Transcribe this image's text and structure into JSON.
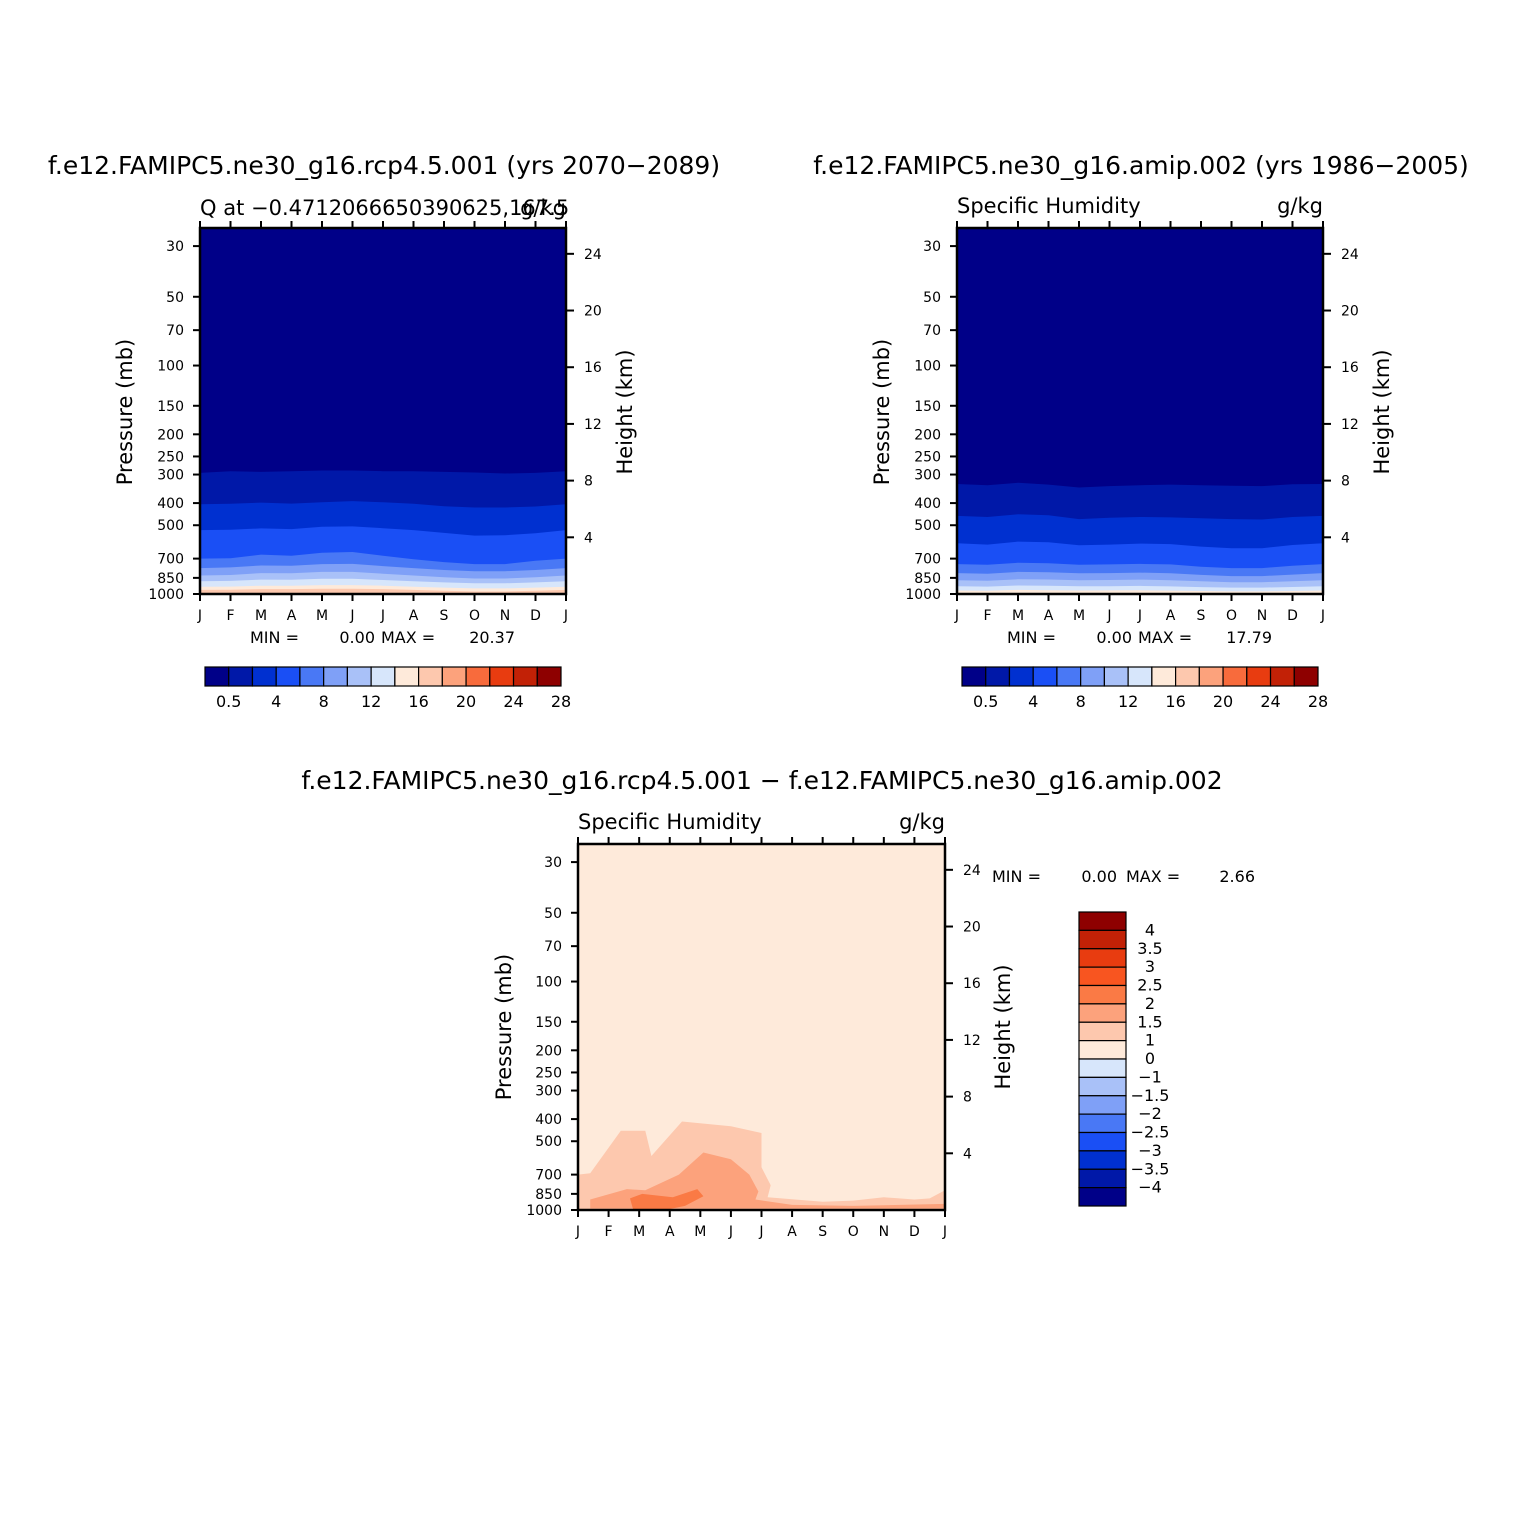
{
  "figure": {
    "panels": [
      {
        "id": "rcp",
        "title": "f.e12.FAMIPC5.ne30_g16.rcp4.5.001 (yrs 2070−2089)",
        "left_label": "Q at −0.4712066650390625,167.5",
        "right_label": "g/kg",
        "stats": {
          "min_label": "MIN =",
          "min": "0.00",
          "max_label": "MAX =",
          "max": "20.37"
        }
      },
      {
        "id": "amip",
        "title": "f.e12.FAMIPC5.ne30_g16.amip.002 (yrs 1986−2005)",
        "left_label": "Specific Humidity",
        "right_label": "g/kg",
        "stats": {
          "min_label": "MIN =",
          "min": "0.00",
          "max_label": "MAX =",
          "max": "17.79"
        }
      },
      {
        "id": "diff",
        "title": "f.e12.FAMIPC5.ne30_g16.rcp4.5.001 − f.e12.FAMIPC5.ne30_g16.amip.002",
        "left_label": "Specific Humidity",
        "right_label": "g/kg",
        "stats": {
          "min_label": "MIN =",
          "min": "0.00",
          "max_label": "MAX =",
          "max": "2.66"
        }
      }
    ],
    "y_axis_label": "Pressure (mb)",
    "y2_axis_label": "Height (km)"
  },
  "chart_data": [
    {
      "type": "heatmap",
      "panel": "rcp",
      "x_categories": [
        "J",
        "F",
        "M",
        "A",
        "M",
        "J",
        "J",
        "A",
        "S",
        "O",
        "N",
        "D",
        "J"
      ],
      "y_ticks_pressure_mb": [
        30,
        50,
        70,
        100,
        150,
        200,
        250,
        300,
        400,
        500,
        700,
        850,
        1000
      ],
      "y2_ticks_height_km": [
        4,
        8,
        12,
        16,
        20,
        24
      ],
      "ylim_mb": [
        1000,
        25
      ],
      "y_scale": "log",
      "color_levels": [
        "0.5",
        "4",
        "8",
        "12",
        "16",
        "20",
        "24",
        "28"
      ],
      "palette": [
        "#000088",
        "#0018a8",
        "#0030d0",
        "#1a4ff5",
        "#4978f5",
        "#7fa0f7",
        "#a9c1f8",
        "#d7e6fb",
        "#feeada",
        "#fdc8ae",
        "#fca27c",
        "#f86b3c",
        "#e83c10",
        "#c22106",
        "#8e0000"
      ],
      "bands_top_mb": [
        {
          "level": 1,
          "values": [
            295,
            290,
            292,
            290,
            288,
            288,
            290,
            290,
            292,
            294,
            297,
            295,
            290
          ]
        },
        {
          "level": 2,
          "values": [
            405,
            403,
            398,
            402,
            397,
            392,
            397,
            403,
            413,
            418,
            418,
            414,
            405
          ]
        },
        {
          "level": 3,
          "values": [
            525,
            523,
            516,
            520,
            508,
            506,
            515,
            525,
            540,
            555,
            553,
            542,
            525
          ]
        },
        {
          "level": 4,
          "values": [
            700,
            698,
            672,
            680,
            660,
            655,
            680,
            705,
            725,
            740,
            740,
            715,
            700
          ]
        },
        {
          "level": 5,
          "values": [
            770,
            765,
            750,
            752,
            740,
            738,
            755,
            770,
            785,
            795,
            795,
            785,
            770
          ]
        },
        {
          "level": 6,
          "values": [
            830,
            826,
            810,
            812,
            800,
            800,
            815,
            830,
            845,
            855,
            855,
            845,
            830
          ]
        },
        {
          "level": 7,
          "values": [
            880,
            876,
            865,
            866,
            858,
            858,
            868,
            880,
            890,
            898,
            898,
            890,
            880
          ]
        },
        {
          "level": 8,
          "values": [
            930,
            928,
            920,
            920,
            914,
            914,
            920,
            930,
            938,
            945,
            945,
            938,
            930
          ]
        },
        {
          "level": 9,
          "values": [
            960,
            958,
            952,
            952,
            948,
            948,
            952,
            960,
            968,
            975,
            975,
            968,
            960
          ]
        }
      ]
    },
    {
      "type": "heatmap",
      "panel": "amip",
      "x_categories": [
        "J",
        "F",
        "M",
        "A",
        "M",
        "J",
        "J",
        "A",
        "S",
        "O",
        "N",
        "D",
        "J"
      ],
      "y_ticks_pressure_mb": [
        30,
        50,
        70,
        100,
        150,
        200,
        250,
        300,
        400,
        500,
        700,
        850,
        1000
      ],
      "y2_ticks_height_km": [
        4,
        8,
        12,
        16,
        20,
        24
      ],
      "ylim_mb": [
        1000,
        25
      ],
      "y_scale": "log",
      "color_levels": [
        "0.5",
        "4",
        "8",
        "12",
        "16",
        "20",
        "24",
        "28"
      ],
      "palette": [
        "#000088",
        "#0018a8",
        "#0030d0",
        "#1a4ff5",
        "#4978f5",
        "#7fa0f7",
        "#a9c1f8",
        "#d7e6fb",
        "#feeada",
        "#fdc8ae",
        "#fca27c",
        "#f86b3c",
        "#e83c10",
        "#c22106",
        "#8e0000"
      ],
      "bands_top_mb": [
        {
          "level": 1,
          "values": [
            330,
            334,
            326,
            332,
            342,
            337,
            334,
            332,
            334,
            336,
            337,
            331,
            330
          ]
        },
        {
          "level": 2,
          "values": [
            455,
            460,
            448,
            452,
            470,
            464,
            460,
            462,
            466,
            470,
            472,
            460,
            455
          ]
        },
        {
          "level": 3,
          "values": [
            600,
            608,
            590,
            594,
            612,
            608,
            602,
            605,
            620,
            630,
            630,
            610,
            600
          ]
        },
        {
          "level": 4,
          "values": [
            740,
            745,
            730,
            733,
            745,
            742,
            738,
            742,
            760,
            770,
            770,
            752,
            740
          ]
        },
        {
          "level": 5,
          "values": [
            810,
            815,
            800,
            803,
            812,
            810,
            806,
            812,
            825,
            835,
            835,
            822,
            810
          ]
        },
        {
          "level": 6,
          "values": [
            870,
            875,
            862,
            864,
            870,
            868,
            865,
            870,
            880,
            888,
            888,
            880,
            870
          ]
        },
        {
          "level": 7,
          "values": [
            925,
            928,
            918,
            920,
            925,
            924,
            922,
            926,
            933,
            938,
            938,
            932,
            925
          ]
        },
        {
          "level": 8,
          "values": [
            965,
            967,
            960,
            962,
            965,
            964,
            963,
            966,
            970,
            974,
            974,
            970,
            965
          ]
        }
      ]
    },
    {
      "type": "heatmap",
      "panel": "diff",
      "x_categories": [
        "J",
        "F",
        "M",
        "A",
        "M",
        "J",
        "J",
        "A",
        "S",
        "O",
        "N",
        "D",
        "J"
      ],
      "y_ticks_pressure_mb": [
        30,
        50,
        70,
        100,
        150,
        200,
        250,
        300,
        400,
        500,
        700,
        850,
        1000
      ],
      "y2_ticks_height_km": [
        4,
        8,
        12,
        16,
        20,
        24
      ],
      "ylim_mb": [
        1000,
        25
      ],
      "y_scale": "log",
      "color_levels": [
        "4",
        "3.5",
        "3",
        "2.5",
        "2",
        "1.5",
        "1",
        "0",
        "−1",
        "−1.5",
        "−2",
        "−2.5",
        "−3",
        "−3.5",
        "−4"
      ],
      "palette": [
        "#8e0000",
        "#c22106",
        "#e83c10",
        "#f85520",
        "#fa7a45",
        "#fca27c",
        "#fdc8ae",
        "#feeada",
        "#d7e6fb",
        "#a9c1f8",
        "#7fa0f7",
        "#4978f5",
        "#1a4ff5",
        "#0030d0",
        "#0018a8",
        "#000088"
      ],
      "base_level": 7,
      "contours": [
        {
          "level": 6,
          "points": [
            [
              0,
              700
            ],
            [
              0.4,
              690
            ],
            [
              1.4,
              450
            ],
            [
              2.2,
              450
            ],
            [
              2.4,
              580
            ],
            [
              3.4,
              410
            ],
            [
              5.0,
              430
            ],
            [
              6.0,
              460
            ],
            [
              6.0,
              650
            ],
            [
              6.3,
              780
            ],
            [
              6.2,
              880
            ],
            [
              8.0,
              920
            ],
            [
              9.0,
              910
            ],
            [
              10.0,
              880
            ],
            [
              11.0,
              900
            ],
            [
              11.5,
              890
            ],
            [
              12.0,
              820
            ],
            [
              12.0,
              1000
            ],
            [
              0,
              1000
            ]
          ]
        },
        {
          "level": 5,
          "points": [
            [
              0.4,
              900
            ],
            [
              1.6,
              810
            ],
            [
              2.2,
              820
            ],
            [
              3.3,
              700
            ],
            [
              4.1,
              560
            ],
            [
              5.0,
              600
            ],
            [
              5.6,
              700
            ],
            [
              5.9,
              830
            ],
            [
              5.8,
              900
            ],
            [
              7.0,
              950
            ],
            [
              9.0,
              960
            ],
            [
              12.0,
              940
            ],
            [
              12.0,
              985
            ],
            [
              0.4,
              985
            ]
          ]
        },
        {
          "level": 4,
          "points": [
            [
              1.7,
              890
            ],
            [
              2.1,
              850
            ],
            [
              3.1,
              880
            ],
            [
              3.9,
              810
            ],
            [
              4.1,
              870
            ],
            [
              3.5,
              960
            ],
            [
              3.0,
              990
            ],
            [
              1.8,
              990
            ]
          ]
        }
      ]
    }
  ]
}
